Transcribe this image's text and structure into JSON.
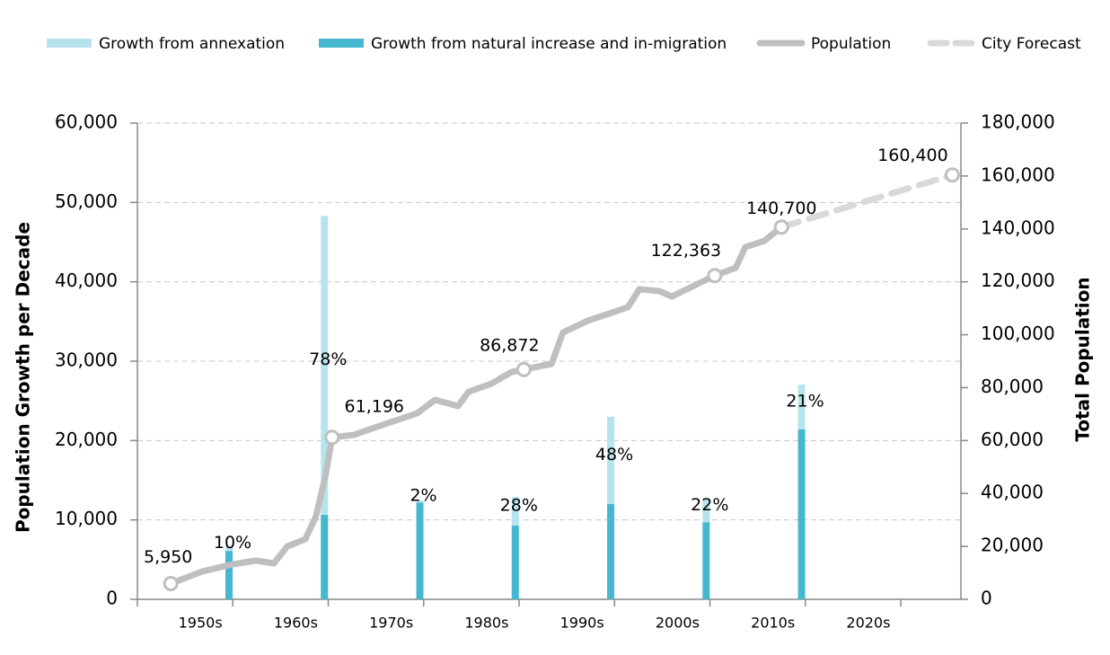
{
  "chart_data": {
    "type": "bar",
    "categories": [
      "1950s",
      "1960s",
      "1970s",
      "1980s",
      "1990s",
      "2000s",
      "2010s",
      "2020s"
    ],
    "series": [
      {
        "name": "Growth from natural increase and in-migration",
        "color": "#45b8d0",
        "values": [
          6100,
          10650,
          12200,
          9300,
          12000,
          9700,
          21400,
          null
        ]
      },
      {
        "name": "Growth from annexation",
        "color": "#b6e4ee",
        "values": [
          600,
          37650,
          250,
          3600,
          11000,
          2900,
          5650,
          null
        ]
      }
    ],
    "annexation_share": {
      "values": [
        10,
        78,
        2,
        28,
        48,
        22,
        21,
        null
      ],
      "value_labels": [
        "10%",
        "78%",
        "2%",
        "28%",
        "48%",
        "22%",
        "21%",
        null
      ]
    },
    "lines": [
      {
        "name": "Population",
        "color": "#bfbfbf",
        "axis": "y2",
        "x": [
          0.35,
          0.68,
          1.0,
          1.24,
          1.43,
          1.57,
          1.76,
          1.87,
          1.97,
          2.04,
          2.27,
          2.51,
          2.93,
          3.12,
          3.36,
          3.47,
          3.71,
          3.92,
          4.05,
          4.34,
          4.46,
          4.72,
          5.14,
          5.26,
          5.47,
          5.6,
          6.05,
          6.27,
          6.37,
          6.57,
          6.75
        ],
        "values": [
          5950,
          10530,
          13250,
          14600,
          13600,
          20000,
          22750,
          31250,
          46500,
          61196,
          62150,
          65200,
          70300,
          75400,
          73000,
          78450,
          81500,
          85900,
          86872,
          89000,
          100900,
          105300,
          110400,
          117200,
          116500,
          114450,
          122363,
          125300,
          133100,
          135500,
          140700
        ],
        "value_labels": [
          "5,950",
          null,
          null,
          null,
          null,
          null,
          null,
          null,
          null,
          "61,196",
          null,
          null,
          null,
          null,
          null,
          null,
          null,
          null,
          "86,872",
          null,
          null,
          null,
          null,
          null,
          null,
          null,
          "122,363",
          null,
          null,
          null,
          "140,700"
        ]
      },
      {
        "name": "City Forecast",
        "color": "#d9d9d9",
        "axis": "y2",
        "dashed": true,
        "x": [
          6.75,
          8.54
        ],
        "values": [
          140700,
          160400
        ],
        "value_labels": [
          null,
          "160,400"
        ]
      }
    ],
    "xlim": [
      0,
      8.63
    ],
    "ylabel": "Population Growth per Decade",
    "y2label": "Total Population",
    "ylim": [
      0,
      60000
    ],
    "yticks": [
      0,
      {
        "value": 10000,
        "label": "10,000"
      },
      {
        "value": 20000,
        "label": "20,000"
      },
      {
        "value": 30000,
        "label": "30,000"
      },
      {
        "value": 40000,
        "label": "40,000"
      },
      {
        "value": 50000,
        "label": "50,000"
      },
      {
        "value": 60000,
        "label": "60,000"
      }
    ],
    "y2lim": [
      0,
      180000
    ],
    "y2ticks": [
      0,
      {
        "value": 20000,
        "label": "20,000"
      },
      {
        "value": 40000,
        "label": "40,000"
      },
      {
        "value": 60000,
        "label": "60,000"
      },
      {
        "value": 80000,
        "label": "80,000"
      },
      {
        "value": 100000,
        "label": "100,000"
      },
      {
        "value": 120000,
        "label": "120,000"
      },
      {
        "value": 140000,
        "label": "140,000"
      },
      {
        "value": 160000,
        "label": "160,000"
      },
      {
        "value": 180000,
        "label": "180,000"
      }
    ],
    "grid": true,
    "legend": "top"
  }
}
